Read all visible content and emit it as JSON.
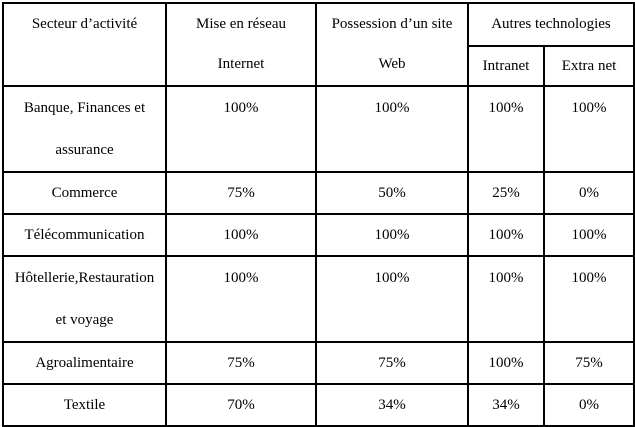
{
  "table": {
    "colors": {
      "border": "#000000",
      "text": "#000000",
      "background": "#ffffff"
    },
    "header": {
      "secteur": "Secteur d’activité",
      "internet_line1": "Mise en réseau",
      "internet_line2": "Internet",
      "web_line1": "Possession d’un site",
      "web_line2": "Web",
      "autres": "Autres technologies",
      "intranet": "Intranet",
      "extranet": "Extra net"
    },
    "rows": [
      {
        "secteur_line1": "Banque, Finances et",
        "secteur_line2": "assurance",
        "internet": "100%",
        "web": "100%",
        "intranet": "100%",
        "extranet": "100%"
      },
      {
        "secteur_line1": "Commerce",
        "secteur_line2": "",
        "internet": "75%",
        "web": "50%",
        "intranet": "25%",
        "extranet": "0%"
      },
      {
        "secteur_line1": "Télécommunication",
        "secteur_line2": "",
        "internet": "100%",
        "web": "100%",
        "intranet": "100%",
        "extranet": "100%"
      },
      {
        "secteur_line1": "Hôtellerie,Restauration",
        "secteur_line2": "et voyage",
        "internet": "100%",
        "web": "100%",
        "intranet": "100%",
        "extranet": "100%"
      },
      {
        "secteur_line1": "Agroalimentaire",
        "secteur_line2": "",
        "internet": "75%",
        "web": "75%",
        "intranet": "100%",
        "extranet": "75%"
      },
      {
        "secteur_line1": "Textile",
        "secteur_line2": "",
        "internet": "70%",
        "web": "34%",
        "intranet": "34%",
        "extranet": "0%"
      }
    ]
  }
}
